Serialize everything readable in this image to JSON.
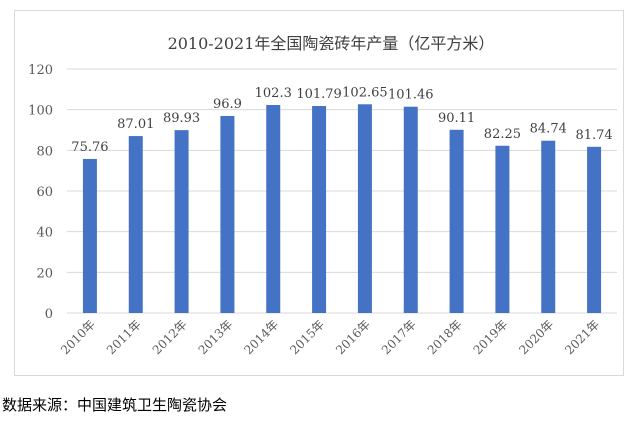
{
  "chart_data": {
    "type": "bar",
    "title": "2010-2021年全国陶瓷砖年产量（亿平方米）",
    "categories": [
      "2010年",
      "2011年",
      "2012年",
      "2013年",
      "2014年",
      "2015年",
      "2016年",
      "2017年",
      "2018年",
      "2019年",
      "2020年",
      "2021年"
    ],
    "values": [
      75.76,
      87.01,
      89.93,
      96.9,
      102.3,
      101.79,
      102.65,
      101.46,
      90.11,
      82.25,
      84.74,
      81.74
    ],
    "value_labels": [
      "75.76",
      "87.01",
      "89.93",
      "96.9",
      "102.3",
      "101.79",
      "102.65",
      "101.46",
      "90.11",
      "82.25",
      "84.74",
      "81.74"
    ],
    "y_ticks": [
      0,
      20,
      40,
      60,
      80,
      100,
      120
    ],
    "ylim": [
      0,
      120
    ],
    "grid": true,
    "legend": "none",
    "bar_color": "#4472c4",
    "grid_color": "#d9d9d9"
  },
  "source": "数据来源：中国建筑卫生陶瓷协会"
}
